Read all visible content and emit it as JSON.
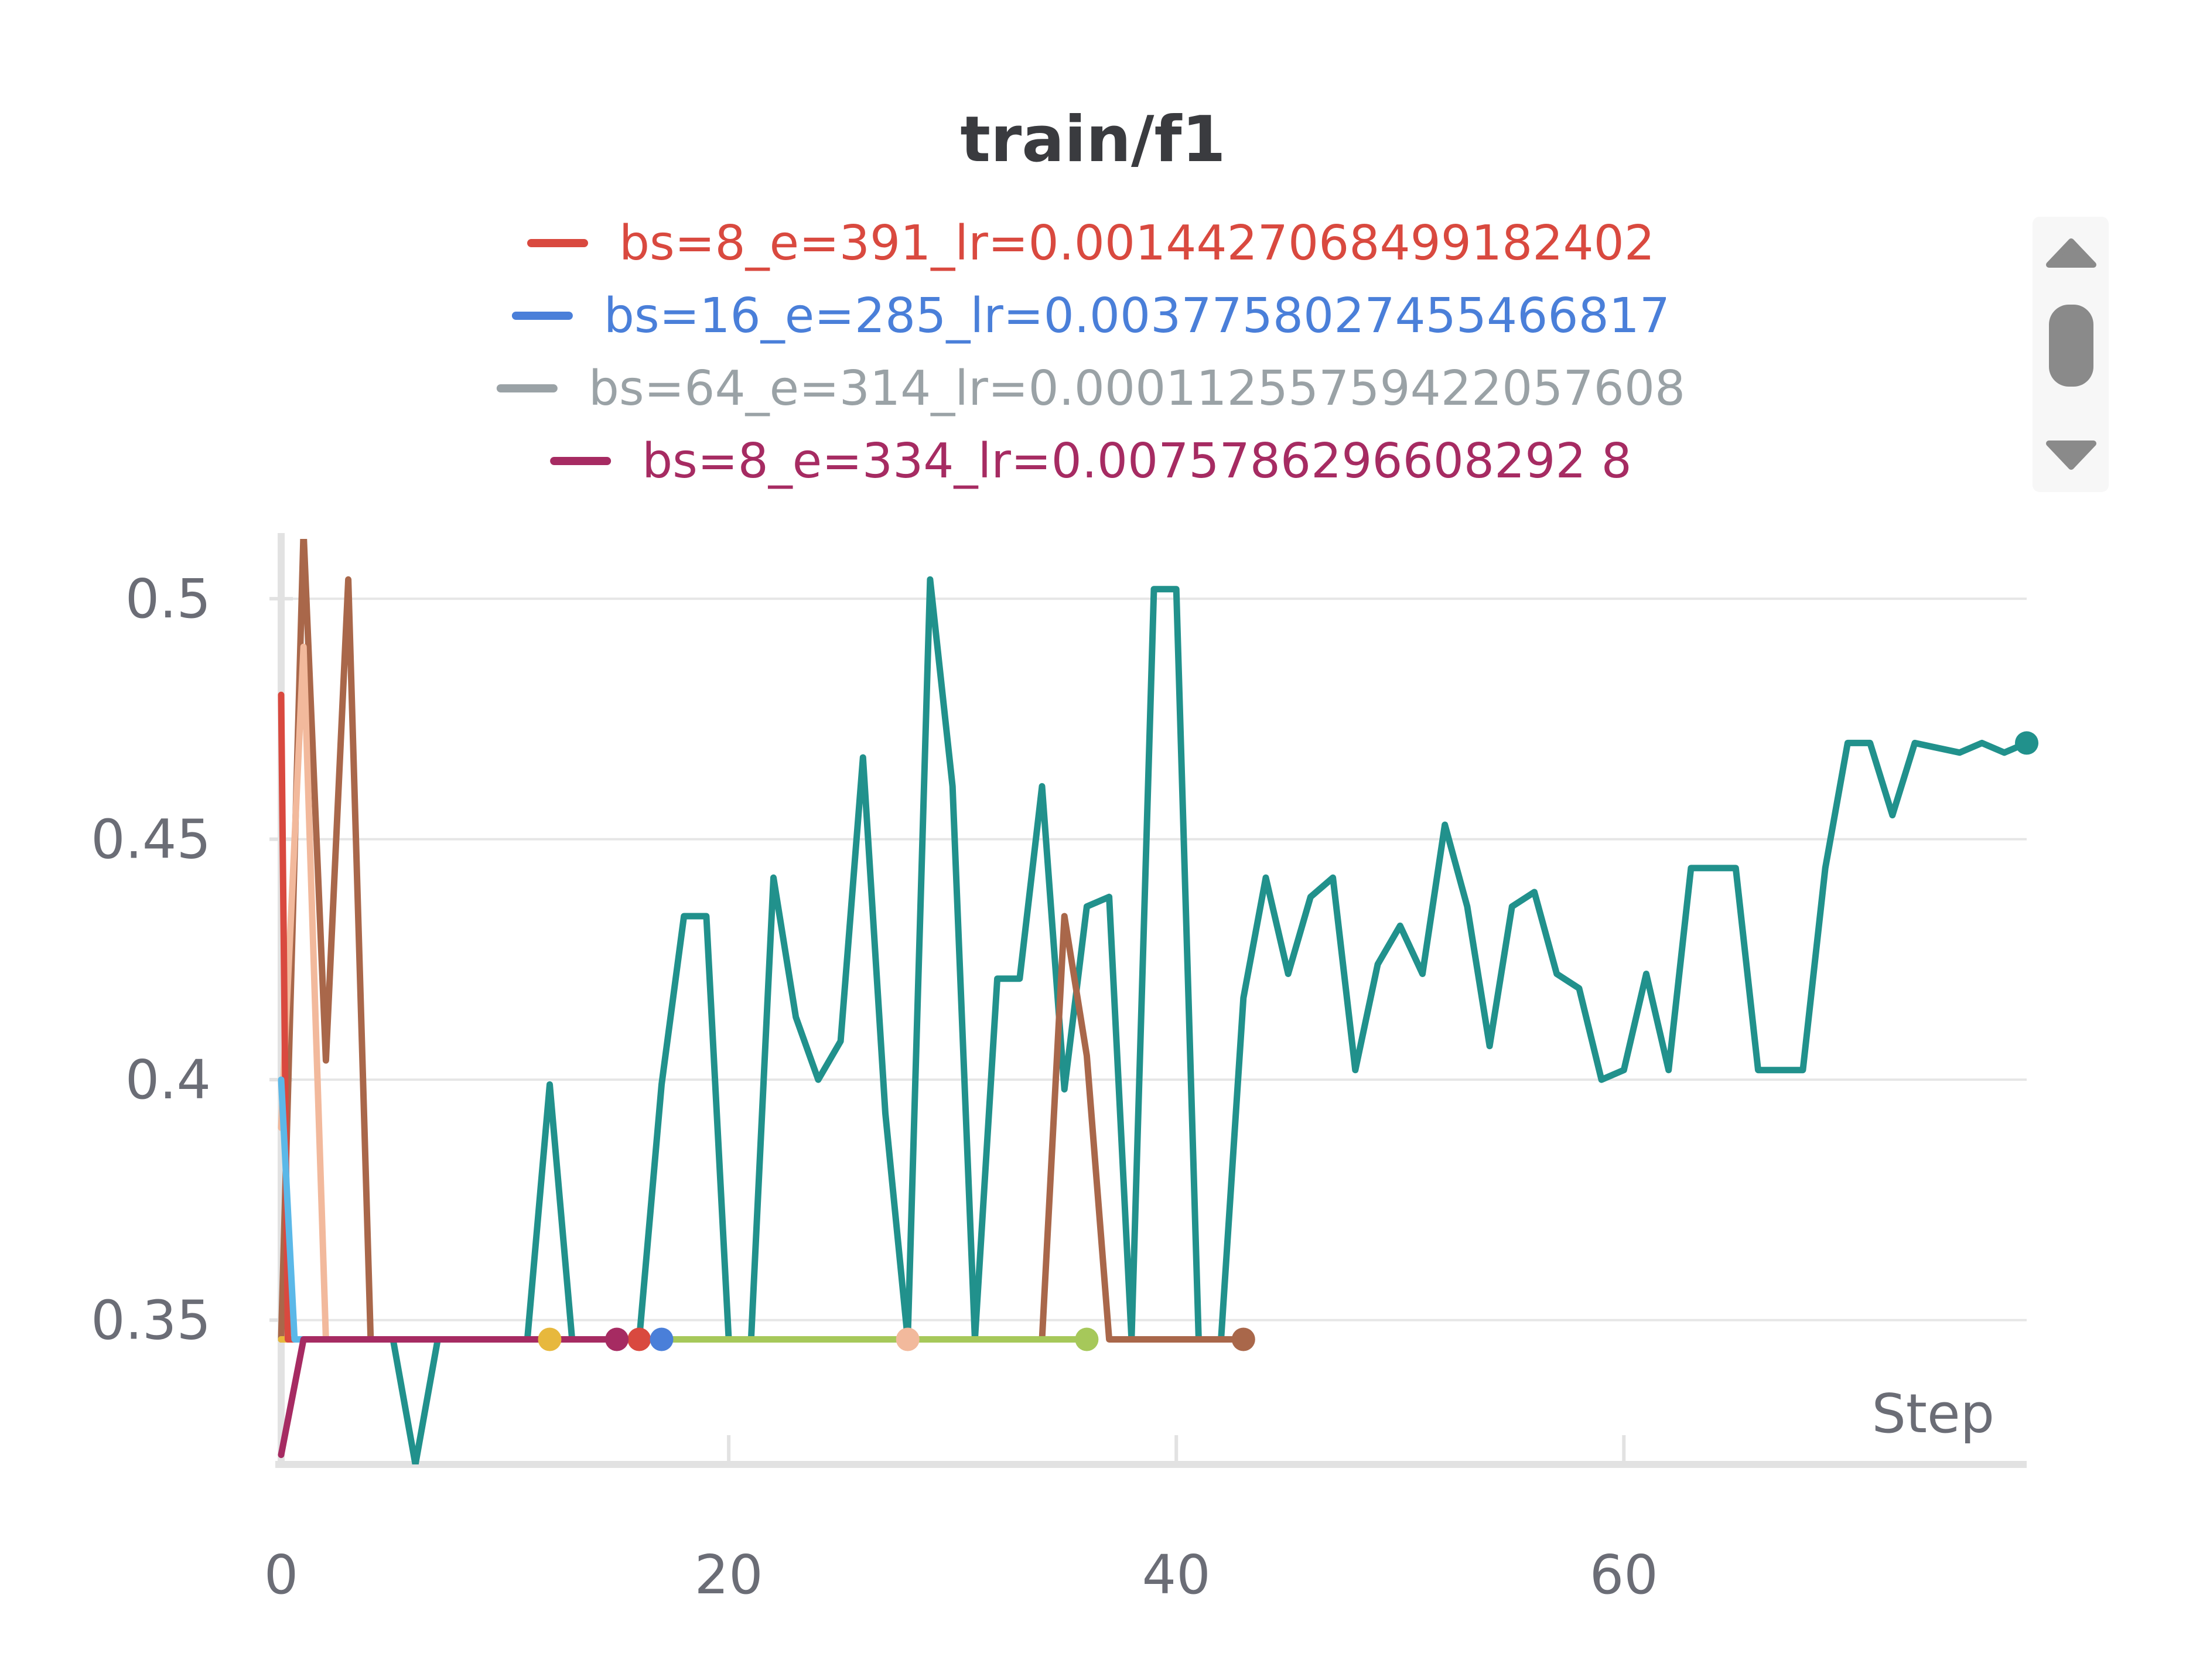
{
  "chart_data": {
    "type": "line",
    "title": "train/f1",
    "xlabel": "Step",
    "ylabel": "",
    "xlim": [
      0,
      78
    ],
    "ylim": [
      0.32,
      0.51
    ],
    "xticks": [
      0,
      20,
      40,
      60
    ],
    "xtick_labels": [
      "0",
      "20",
      "40",
      "60"
    ],
    "yticks": [
      0.35,
      0.4,
      0.45,
      0.5
    ],
    "ytick_labels": [
      "0.35",
      "0.4",
      "0.45",
      "0.5"
    ],
    "grid": true,
    "legend_position": "top",
    "legend": [
      {
        "name": "bs=8_e=391_lr=0.0014427068499182402",
        "color": "#d9493f"
      },
      {
        "name": "bs=16_e=285_lr=0.0037758027455466817",
        "color": "#4a7fd9"
      },
      {
        "name": "bs=64_e=314_lr=0.00011255759422057608",
        "color": "#9aa2a6"
      },
      {
        "name": "bs=8_e=334_lr=0.0075786296608292 8",
        "color": "#a62b62"
      }
    ],
    "series": [
      {
        "color": "#21918c",
        "x": [
          0,
          1,
          2,
          3,
          4,
          5,
          6,
          7,
          8,
          9,
          10,
          11,
          12,
          13,
          14,
          15,
          16,
          17,
          18,
          19,
          20,
          21,
          22,
          23,
          24,
          25,
          26,
          27,
          28,
          29,
          30,
          31,
          32,
          33,
          34,
          35,
          36,
          37,
          38,
          39,
          40,
          41,
          42,
          43,
          44,
          45,
          46,
          47,
          48,
          49,
          50,
          51,
          52,
          53,
          54,
          55,
          56,
          57,
          58,
          59,
          60,
          61,
          62,
          63,
          64,
          65,
          66,
          67,
          68,
          69,
          70,
          71,
          72,
          73,
          74,
          75,
          76,
          77,
          78
        ],
        "y": [
          0.346,
          0.346,
          0.346,
          0.346,
          0.346,
          0.346,
          0.32,
          0.346,
          0.346,
          0.346,
          0.346,
          0.346,
          0.399,
          0.346,
          0.346,
          0.346,
          0.346,
          0.399,
          0.434,
          0.434,
          0.346,
          0.346,
          0.442,
          0.413,
          0.4,
          0.408,
          0.467,
          0.393,
          0.346,
          0.504,
          0.461,
          0.346,
          0.421,
          0.421,
          0.461,
          0.398,
          0.436,
          0.438,
          0.346,
          0.502,
          0.502,
          0.346,
          0.346,
          0.417,
          0.442,
          0.422,
          0.438,
          0.442,
          0.402,
          0.424,
          0.432,
          0.422,
          0.453,
          0.436,
          0.407,
          0.436,
          0.439,
          0.422,
          0.419,
          0.4,
          0.402,
          0.422,
          0.402,
          0.444,
          0.444,
          0.444,
          0.402,
          0.402,
          0.402,
          0.444,
          0.47,
          0.47,
          0.455,
          0.47,
          0.469,
          0.468,
          0.47,
          0.468,
          0.47
        ],
        "end_marker": true
      },
      {
        "color": "#a9674a",
        "x": [
          0,
          1,
          2,
          3,
          4,
          5,
          6,
          7,
          8,
          9,
          10,
          11,
          12,
          13,
          14,
          15,
          16,
          17,
          18,
          19,
          20,
          21,
          22,
          23,
          24,
          25,
          26,
          27,
          28,
          29,
          30,
          31,
          32,
          33,
          34,
          35,
          36,
          37,
          38,
          39,
          40,
          41,
          42,
          43
        ],
        "y": [
          0.346,
          0.514,
          0.404,
          0.504,
          0.346,
          0.346,
          0.346,
          0.346,
          0.346,
          0.346,
          0.346,
          0.346,
          0.346,
          0.346,
          0.346,
          0.346,
          0.346,
          0.346,
          0.346,
          0.346,
          0.346,
          0.346,
          0.346,
          0.346,
          0.346,
          0.346,
          0.346,
          0.346,
          0.346,
          0.346,
          0.346,
          0.346,
          0.346,
          0.346,
          0.346,
          0.434,
          0.405,
          0.346,
          0.346,
          0.346,
          0.346,
          0.346,
          0.346,
          0.346
        ],
        "end_marker": true
      },
      {
        "color": "#f2b99c",
        "x": [
          0,
          1,
          2,
          3,
          4,
          5,
          6,
          7,
          8,
          9,
          10,
          11,
          12,
          13,
          14,
          15,
          16,
          17,
          18,
          19,
          20,
          21,
          22,
          23,
          24,
          25,
          26,
          27,
          28
        ],
        "y": [
          0.39,
          0.49,
          0.346,
          0.346,
          0.346,
          0.346,
          0.346,
          0.346,
          0.346,
          0.346,
          0.346,
          0.346,
          0.346,
          0.346,
          0.346,
          0.346,
          0.346,
          0.346,
          0.346,
          0.346,
          0.346,
          0.346,
          0.346,
          0.346,
          0.346,
          0.346,
          0.346,
          0.346,
          0.346
        ],
        "end_marker": true
      },
      {
        "color": "#a6c85a",
        "x": [
          0,
          5,
          10,
          15,
          20,
          25,
          28,
          30,
          32,
          34,
          36
        ],
        "y": [
          0.346,
          0.346,
          0.346,
          0.346,
          0.346,
          0.346,
          0.346,
          0.346,
          0.346,
          0.346,
          0.346
        ],
        "end_marker": true
      },
      {
        "color": "#e7b83d",
        "x": [
          0,
          2,
          4,
          6,
          8,
          10,
          12
        ],
        "y": [
          0.346,
          0.346,
          0.346,
          0.346,
          0.346,
          0.346,
          0.346
        ],
        "end_marker": true
      },
      {
        "name": "bs=8_e=391_lr=0.0014427068499182402",
        "color": "#d9493f",
        "x": [
          0,
          0.3,
          1,
          2,
          4,
          8,
          12,
          16
        ],
        "y": [
          0.48,
          0.346,
          0.346,
          0.346,
          0.346,
          0.346,
          0.346,
          0.346
        ],
        "end_marker": true
      },
      {
        "name": "bs=16_e=285_lr=0.0037758027455466817",
        "color": "#5bb8e8",
        "x": [
          0,
          0.6,
          1,
          2,
          4,
          8,
          12,
          17
        ],
        "y": [
          0.4,
          0.346,
          0.346,
          0.346,
          0.346,
          0.346,
          0.346,
          0.346
        ],
        "end_marker": true,
        "marker_color": "#4a7fd9"
      },
      {
        "name": "bs=8_e=334_lr=0.0075786296608292 8",
        "color": "#a62b62",
        "x": [
          0,
          1,
          2,
          4,
          8,
          12,
          15
        ],
        "y": [
          0.322,
          0.346,
          0.346,
          0.346,
          0.346,
          0.346,
          0.346
        ],
        "end_marker": true
      }
    ]
  }
}
